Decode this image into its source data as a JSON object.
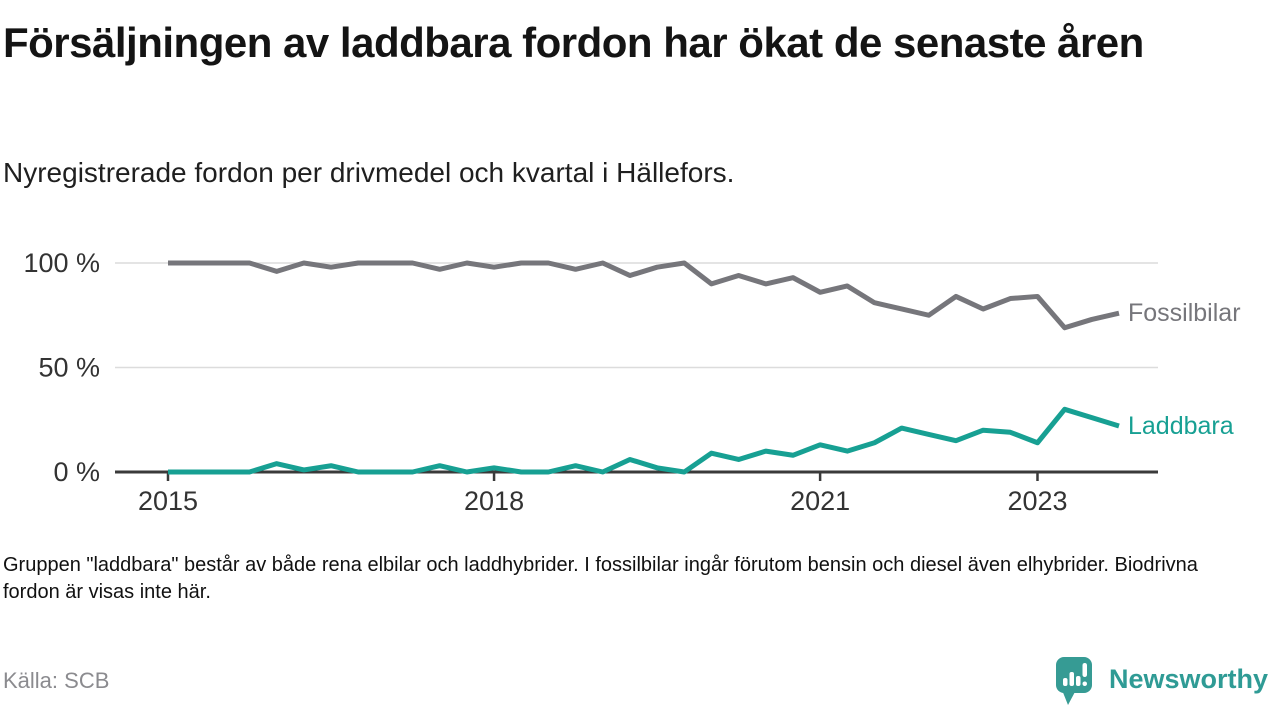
{
  "header": {
    "title": "Försäljningen av laddbara fordon har ökat de senaste åren",
    "subtitle": "Nyregistrerade fordon per drivmedel och kvartal i Hällefors."
  },
  "chart_data": {
    "type": "line",
    "title": "Försäljningen av laddbara fordon har ökat de senaste åren",
    "xlabel": "",
    "ylabel": "",
    "ylim": [
      0,
      100
    ],
    "grid": "horizontal",
    "legend_position": "right-end-of-lines",
    "categories": [
      "2015-Q1",
      "2015-Q2",
      "2015-Q3",
      "2015-Q4",
      "2016-Q1",
      "2016-Q2",
      "2016-Q3",
      "2016-Q4",
      "2017-Q1",
      "2017-Q2",
      "2017-Q3",
      "2017-Q4",
      "2018-Q1",
      "2018-Q2",
      "2018-Q3",
      "2018-Q4",
      "2019-Q1",
      "2019-Q2",
      "2019-Q3",
      "2019-Q4",
      "2020-Q1",
      "2020-Q2",
      "2020-Q3",
      "2020-Q4",
      "2021-Q1",
      "2021-Q2",
      "2021-Q3",
      "2021-Q4",
      "2022-Q1",
      "2022-Q2",
      "2022-Q3",
      "2022-Q4",
      "2023-Q1",
      "2023-Q2",
      "2023-Q3",
      "2023-Q4"
    ],
    "yticks": [
      {
        "value": 0,
        "label": "0 %"
      },
      {
        "value": 50,
        "label": "50 %"
      },
      {
        "value": 100,
        "label": "100 %"
      }
    ],
    "xticks": [
      {
        "index": 0,
        "label": "2015"
      },
      {
        "index": 12,
        "label": "2018"
      },
      {
        "index": 24,
        "label": "2021"
      },
      {
        "index": 32,
        "label": "2023"
      }
    ],
    "series": [
      {
        "name": "Fossilbilar",
        "color": "#76767b",
        "values": [
          100,
          100,
          100,
          100,
          96,
          100,
          98,
          100,
          100,
          100,
          97,
          100,
          98,
          100,
          100,
          97,
          100,
          94,
          98,
          100,
          90,
          94,
          90,
          93,
          86,
          89,
          81,
          78,
          75,
          84,
          78,
          83,
          84,
          69,
          73,
          76
        ]
      },
      {
        "name": "Laddbara",
        "color": "#17a093",
        "values": [
          0,
          0,
          0,
          0,
          4,
          1,
          3,
          0,
          0,
          0,
          3,
          0,
          2,
          0,
          0,
          3,
          0,
          6,
          2,
          0,
          9,
          6,
          10,
          8,
          13,
          10,
          14,
          21,
          18,
          15,
          20,
          19,
          14,
          30,
          26,
          22
        ]
      }
    ]
  },
  "footnote": "Gruppen \"laddbara\" består av både rena elbilar och laddhybrider. I fossilbilar ingår förutom bensin och diesel även elhybrider. Biodrivna fordon är visas inte här.",
  "source": "Källa: SCB",
  "branding": {
    "name": "Newsworthy",
    "logo_icon": "newsworthy-chart-speech-bubble-icon",
    "color": "#2f9b95"
  }
}
